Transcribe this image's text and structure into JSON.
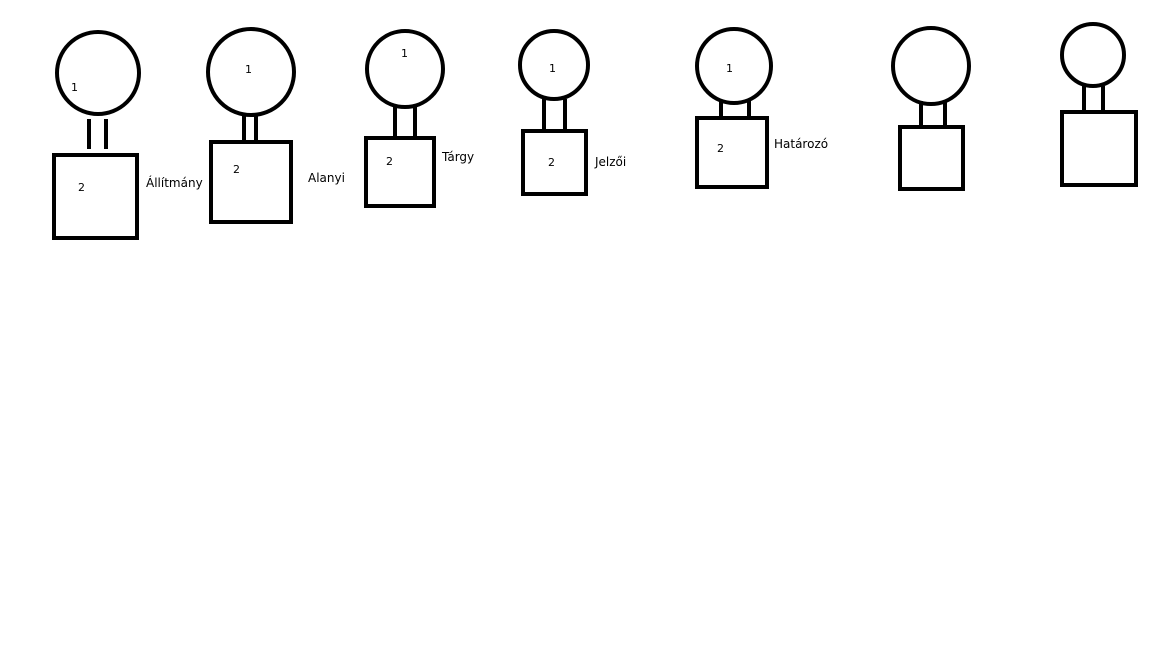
{
  "diagram": {
    "items": [
      {
        "circle_number": "1",
        "box_number": "2",
        "label": "Állítmány"
      },
      {
        "circle_number": "1",
        "box_number": "2",
        "label": "Alanyi"
      },
      {
        "circle_number": "1",
        "box_number": "2",
        "label": "Tárgy"
      },
      {
        "circle_number": "1",
        "box_number": "2",
        "label": "Jelzői"
      },
      {
        "circle_number": "1",
        "box_number": "2",
        "label": "Határozó"
      },
      {
        "circle_number": "",
        "box_number": "",
        "label": ""
      },
      {
        "circle_number": "",
        "box_number": "",
        "label": ""
      }
    ]
  }
}
